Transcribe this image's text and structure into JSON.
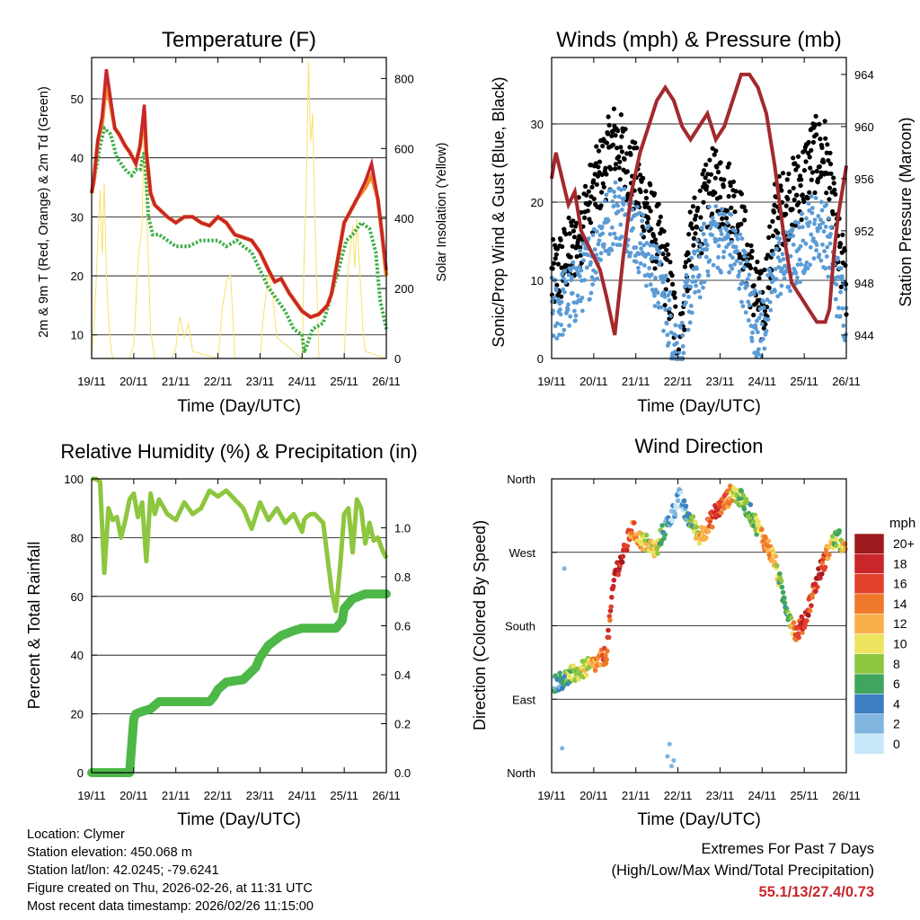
{
  "chart_data": [
    {
      "type": "line",
      "title": "Temperature (F)",
      "xlabel": "Time (Day/UTC)",
      "ylabel": "2m & 9m T (Red, Orange) & 2m Td (Green)",
      "y2label": "Solar Insolation (Yellow)",
      "xticks": [
        "19/11",
        "20/11",
        "21/11",
        "22/11",
        "23/11",
        "24/11",
        "25/11",
        "26/11"
      ],
      "ylim": [
        6,
        57
      ],
      "yticks": [
        10,
        20,
        30,
        40,
        50
      ],
      "y2lim": [
        0,
        860
      ],
      "y2ticks": [
        0,
        200,
        400,
        600,
        800
      ],
      "series": [
        {
          "name": "2m T",
          "color": "#c8262a",
          "x": [
            0,
            0.05,
            0.15,
            0.25,
            0.35,
            0.45,
            0.55,
            0.65,
            0.8,
            0.9,
            1.05,
            1.15,
            1.25,
            1.3,
            1.4,
            1.5,
            1.65,
            1.8,
            2.0,
            2.2,
            2.4,
            2.6,
            2.8,
            3.0,
            3.2,
            3.4,
            3.6,
            3.8,
            4.0,
            4.2,
            4.35,
            4.5,
            4.7,
            4.9,
            5.0,
            5.2,
            5.4,
            5.6,
            5.7,
            5.8,
            5.9,
            6.0,
            6.15,
            6.3,
            6.5,
            6.65,
            6.8,
            6.9,
            7.0
          ],
          "y": [
            34,
            36,
            43,
            47,
            55,
            50,
            45,
            44,
            42,
            41,
            39,
            42,
            49,
            41,
            34,
            32,
            31,
            30,
            29,
            30,
            30,
            29,
            28.5,
            30,
            29,
            27,
            26.5,
            26,
            24,
            21,
            19,
            19.5,
            17,
            15,
            14,
            13,
            13.5,
            15,
            17,
            21,
            25,
            29,
            31,
            33,
            36,
            39,
            33,
            27,
            21
          ]
        },
        {
          "name": "9m T",
          "color": "#f08a24",
          "x": [
            0,
            0.05,
            0.15,
            0.25,
            0.35,
            0.45,
            0.55,
            0.65,
            0.8,
            0.9,
            1.05,
            1.15,
            1.25,
            1.3,
            1.4,
            1.5,
            1.65,
            1.8,
            2.0,
            2.2,
            2.4,
            2.6,
            2.8,
            3.0,
            3.2,
            3.4,
            3.6,
            3.8,
            4.0,
            4.2,
            4.35,
            4.5,
            4.7,
            4.9,
            5.0,
            5.2,
            5.4,
            5.6,
            5.7,
            5.8,
            5.9,
            6.0,
            6.15,
            6.3,
            6.5,
            6.65,
            6.8,
            6.9,
            7.0
          ],
          "y": [
            34,
            36,
            43,
            46,
            53,
            49,
            45,
            44,
            42,
            41,
            39,
            42,
            48,
            41,
            34,
            32,
            31,
            30,
            29,
            30,
            30,
            29,
            28.5,
            30,
            29,
            27,
            26.5,
            26,
            24,
            21,
            19,
            19.5,
            17,
            15,
            14,
            13,
            13.5,
            15,
            17,
            21,
            25,
            29,
            31,
            33,
            35,
            37,
            33,
            27,
            20
          ]
        },
        {
          "name": "2m Td",
          "color": "#3fae49",
          "x": [
            0,
            0.1,
            0.2,
            0.3,
            0.45,
            0.6,
            0.8,
            0.95,
            1.05,
            1.15,
            1.25,
            1.35,
            1.45,
            1.6,
            1.8,
            2.0,
            2.3,
            2.6,
            2.8,
            3.0,
            3.2,
            3.45,
            3.6,
            3.8,
            4.0,
            4.2,
            4.4,
            4.6,
            4.8,
            5.0,
            5.05,
            5.15,
            5.25,
            5.5,
            5.7,
            5.9,
            6.05,
            6.2,
            6.4,
            6.6,
            6.75,
            6.85,
            7.0
          ],
          "y": [
            34,
            38,
            42,
            45,
            44,
            40,
            38,
            37,
            38,
            38,
            41,
            30,
            27,
            27,
            26,
            25,
            25,
            26,
            26,
            26,
            25,
            26,
            25,
            24,
            21,
            18,
            16,
            14,
            11,
            10,
            7,
            9,
            11,
            12,
            17,
            22,
            26,
            27,
            29,
            28,
            24,
            16,
            11
          ]
        }
      ],
      "insolation": {
        "name": "Solar Insolation",
        "color": "#f7e16a",
        "x": [
          0,
          0.05,
          0.1,
          0.15,
          0.2,
          0.25,
          0.3,
          0.35,
          0.4,
          0.45,
          0.5,
          0.9,
          1.0,
          1.05,
          1.1,
          1.2,
          1.25,
          1.3,
          1.35,
          1.4,
          1.5,
          1.9,
          2.0,
          2.05,
          2.1,
          2.2,
          2.3,
          2.4,
          3.0,
          3.05,
          3.1,
          3.2,
          3.3,
          3.35,
          3.4,
          4.0,
          4.05,
          4.1,
          4.2,
          4.3,
          4.4,
          5.0,
          5.05,
          5.1,
          5.15,
          5.2,
          5.25,
          5.3,
          5.35,
          5.4,
          6.0,
          6.05,
          6.1,
          6.2,
          6.25,
          6.3,
          6.4,
          6.45,
          6.5,
          7.0
        ],
        "y": [
          0,
          80,
          200,
          350,
          480,
          300,
          500,
          240,
          120,
          40,
          0,
          0,
          40,
          150,
          280,
          380,
          720,
          450,
          260,
          80,
          0,
          0,
          30,
          80,
          120,
          60,
          100,
          20,
          0,
          60,
          140,
          220,
          240,
          130,
          0,
          0,
          80,
          140,
          250,
          180,
          60,
          0,
          300,
          480,
          850,
          620,
          700,
          420,
          200,
          0,
          0,
          140,
          260,
          380,
          260,
          400,
          180,
          80,
          20,
          0
        ]
      }
    },
    {
      "type": "scatter",
      "title": "Winds (mph) & Pressure (mb)",
      "xlabel": "Time (Day/UTC)",
      "ylabel": "Sonic/Prop Wind & Gust (Blue, Black)",
      "y2label": "Station Pressure (Maroon)",
      "xticks": [
        "19/11",
        "20/11",
        "21/11",
        "22/11",
        "23/11",
        "24/11",
        "25/11",
        "26/11"
      ],
      "ylim": [
        0,
        38.5
      ],
      "yticks": [
        0,
        10,
        20,
        30
      ],
      "y2lim": [
        942.2,
        965.3
      ],
      "y2ticks": [
        944,
        948,
        952,
        956,
        960,
        964
      ],
      "wind": {
        "color": "#5b9bd5",
        "x": [
          0,
          0.5,
          0.9,
          1.2,
          1.5,
          1.8,
          2.2,
          2.6,
          2.9,
          3.0,
          3.1,
          3.2,
          3.4,
          3.8,
          4.2,
          4.5,
          4.8,
          5.0,
          5.2,
          5.3,
          5.6,
          5.9,
          6.2,
          6.5,
          6.8,
          7.0
        ],
        "y": [
          6,
          8,
          12,
          16,
          19,
          18,
          14,
          9,
          3,
          0.5,
          1,
          7,
          10,
          16,
          15,
          12,
          5,
          4,
          8,
          12,
          12,
          14,
          17,
          16,
          9,
          6
        ]
      },
      "gust": {
        "color": "#000000",
        "x": [
          0,
          0.5,
          0.9,
          1.2,
          1.5,
          1.8,
          2.2,
          2.6,
          2.9,
          3.0,
          3.1,
          3.2,
          3.4,
          3.8,
          4.2,
          4.5,
          4.8,
          5.0,
          5.2,
          5.3,
          5.6,
          5.9,
          6.2,
          6.5,
          6.8,
          7.0
        ],
        "y": [
          10,
          14,
          20,
          24,
          28,
          25,
          20,
          14,
          6,
          1,
          2,
          12,
          16,
          22,
          21,
          17,
          9,
          6,
          13,
          18,
          20,
          22,
          26,
          26,
          14,
          9
        ]
      },
      "pressure": {
        "color": "#a3292d",
        "x": [
          0,
          0.1,
          0.25,
          0.4,
          0.55,
          0.7,
          0.85,
          1.0,
          1.15,
          1.3,
          1.5,
          1.7,
          1.9,
          2.1,
          2.3,
          2.5,
          2.7,
          2.9,
          3.1,
          3.3,
          3.5,
          3.7,
          3.9,
          4.1,
          4.3,
          4.5,
          4.7,
          4.9,
          5.1,
          5.3,
          5.5,
          5.7,
          5.9,
          6.1,
          6.3,
          6.5,
          6.6,
          6.7,
          6.8,
          6.9,
          7.0
        ],
        "y": [
          956,
          958,
          956,
          954,
          955,
          952,
          951,
          950,
          949,
          947,
          944,
          950,
          955,
          958,
          960,
          962,
          963,
          962,
          960,
          959,
          960,
          961,
          959,
          960,
          962,
          964,
          964,
          963,
          961,
          957,
          952,
          948,
          947,
          946,
          945,
          945,
          946,
          950,
          953,
          955,
          957
        ]
      },
      "dots_label": "Wind & Gust"
    },
    {
      "type": "line",
      "title": "Relative Humidity (%) & Precipitation (in)",
      "xlabel": "Time (Day/UTC)",
      "ylabel": "Percent & Total Rainfall",
      "xticks": [
        "19/11",
        "20/11",
        "21/11",
        "22/11",
        "23/11",
        "24/11",
        "25/11",
        "26/11"
      ],
      "ylim": [
        0,
        100
      ],
      "yticks": [
        0,
        20,
        40,
        60,
        80,
        100
      ],
      "y2lim": [
        0,
        1.2
      ],
      "y2ticks": [
        "0.0",
        "0.2",
        "0.4",
        "0.6",
        "0.8",
        "1.0"
      ],
      "series": [
        {
          "name": "Relative Humidity",
          "color": "#8dc63f",
          "x": [
            0,
            0.1,
            0.2,
            0.3,
            0.4,
            0.5,
            0.6,
            0.7,
            0.8,
            0.9,
            1.0,
            1.1,
            1.2,
            1.3,
            1.4,
            1.5,
            1.6,
            1.8,
            2.0,
            2.2,
            2.4,
            2.6,
            2.8,
            3.0,
            3.2,
            3.4,
            3.6,
            3.8,
            4.0,
            4.2,
            4.4,
            4.6,
            4.8,
            5.0,
            5.05,
            5.1,
            5.2,
            5.3,
            5.5,
            5.7,
            5.8,
            5.9,
            6.0,
            6.1,
            6.2,
            6.3,
            6.4,
            6.5,
            6.6,
            6.7,
            6.8,
            6.9,
            7.0
          ],
          "y": [
            100,
            100,
            99,
            68,
            90,
            86,
            87,
            80,
            86,
            93,
            95,
            87,
            92,
            72,
            95,
            88,
            93,
            88,
            86,
            92,
            88,
            90,
            96,
            94,
            96,
            93,
            90,
            83,
            92,
            86,
            90,
            85,
            88,
            82,
            86,
            87,
            88,
            88,
            85,
            62,
            55,
            70,
            88,
            90,
            75,
            93,
            90,
            78,
            85,
            79,
            80,
            76,
            73
          ]
        },
        {
          "name": "Total Precipitation",
          "color": "#4db848",
          "x": [
            0,
            0.9,
            1.0,
            1.05,
            1.2,
            1.4,
            1.6,
            2.0,
            2.4,
            2.8,
            2.9,
            3.0,
            3.2,
            3.6,
            3.9,
            4.0,
            4.2,
            4.5,
            4.8,
            5.0,
            5.2,
            5.5,
            5.8,
            5.95,
            6.0,
            6.2,
            6.5,
            7.0
          ],
          "y": [
            0,
            0,
            0.22,
            0.24,
            0.25,
            0.26,
            0.29,
            0.29,
            0.29,
            0.29,
            0.31,
            0.34,
            0.37,
            0.38,
            0.43,
            0.47,
            0.52,
            0.56,
            0.58,
            0.59,
            0.59,
            0.59,
            0.59,
            0.62,
            0.67,
            0.71,
            0.73,
            0.73
          ]
        }
      ]
    },
    {
      "type": "scatter",
      "title": "Wind Direction",
      "xlabel": "Time (Day/UTC)",
      "ylabel": "Direction (Colored By Speed)",
      "xticks": [
        "19/11",
        "20/11",
        "21/11",
        "22/11",
        "23/11",
        "24/11",
        "25/11",
        "26/11"
      ],
      "yticks": [
        "North",
        "East",
        "South",
        "West",
        "North"
      ],
      "ylim": [
        0,
        360
      ],
      "points": {
        "x": [
          0.1,
          0.3,
          0.5,
          0.7,
          0.9,
          1.1,
          1.3,
          1.5,
          1.7,
          1.9,
          2.1,
          2.3,
          2.5,
          2.6,
          2.8,
          2.9,
          3.0,
          3.1,
          3.2,
          3.3,
          3.5,
          3.7,
          3.9,
          4.1,
          4.3,
          4.5,
          4.7,
          4.9,
          5.1,
          5.3,
          5.5,
          5.6,
          5.8,
          6.0,
          6.2,
          6.4,
          6.6,
          6.8,
          6.95
        ],
        "y": [
          110,
          115,
          120,
          125,
          130,
          135,
          145,
          245,
          265,
          300,
          285,
          280,
          270,
          290,
          310,
          320,
          340,
          330,
          315,
          310,
          290,
          300,
          320,
          330,
          345,
          335,
          320,
          300,
          280,
          260,
          215,
          200,
          170,
          185,
          220,
          250,
          275,
          290,
          270
        ],
        "speed": [
          4,
          6,
          8,
          9,
          11,
          13,
          15,
          18,
          19,
          14,
          12,
          9,
          11,
          5,
          3,
          2,
          1,
          2,
          4,
          6,
          11,
          13,
          17,
          14,
          11,
          7,
          6,
          8,
          15,
          12,
          4,
          6,
          14,
          18,
          16,
          18,
          11,
          7,
          12
        ]
      },
      "legend": {
        "title": "mph",
        "labels": [
          "20+",
          "18",
          "16",
          "14",
          "12",
          "10",
          "8",
          "6",
          "4",
          "2",
          "0"
        ],
        "colors": [
          "#9e1a1d",
          "#c8262a",
          "#e2412c",
          "#f0782a",
          "#f9b04a",
          "#ece45f",
          "#8dc63f",
          "#41a65d",
          "#3c80c1",
          "#80b6e0",
          "#c6e7f7"
        ]
      }
    }
  ],
  "station": {
    "location": "Location: Clymer",
    "elevation": "Station elevation: 450.068 m",
    "latlon": "Station lat/lon: 42.0245; -79.6241",
    "created": "Figure created on Thu, 2026-02-26, at 11:31 UTC",
    "recent": "Most recent data timestamp: 2026/02/26 11:15:00"
  },
  "extremes": {
    "title": "Extremes For Past 7 Days",
    "subtitle": "(High/Low/Max Wind/Total Precipitation)",
    "values": "55.1/13/27.4/0.73"
  }
}
